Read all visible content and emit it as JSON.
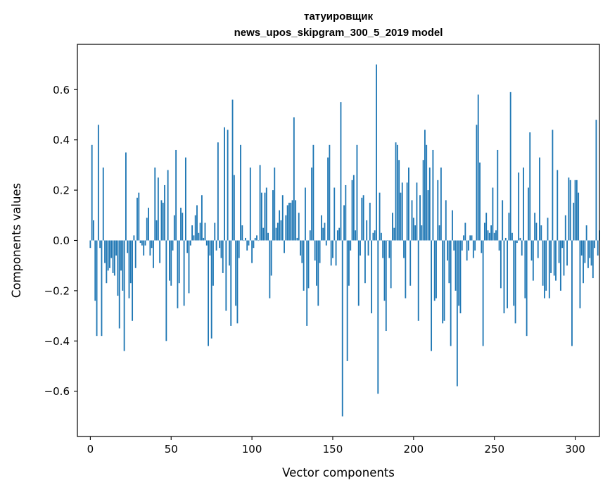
{
  "chart_data": {
    "type": "bar",
    "title": "татуировщик",
    "subtitle": "news_upos_skipgram_300_5_2019 model",
    "xlabel": "Vector components",
    "ylabel": "Components values",
    "xlim": [
      -8,
      315
    ],
    "ylim": [
      -0.78,
      0.78
    ],
    "xticks": [
      0,
      50,
      100,
      150,
      200,
      250,
      300
    ],
    "yticks": [
      -0.6,
      -0.4,
      -0.2,
      0.0,
      0.2,
      0.4,
      0.6
    ],
    "ytick_labels": [
      "−0.6",
      "−0.4",
      "−0.2",
      "0.0",
      "0.2",
      "0.4",
      "0.6"
    ],
    "color": "#1f77b4",
    "values": [
      -0.03,
      0.38,
      0.08,
      -0.24,
      -0.38,
      0.46,
      -0.03,
      -0.38,
      0.29,
      -0.09,
      -0.17,
      -0.12,
      -0.11,
      -0.07,
      -0.13,
      -0.14,
      -0.06,
      -0.22,
      -0.35,
      -0.12,
      -0.2,
      -0.44,
      0.35,
      -0.05,
      -0.23,
      -0.17,
      -0.32,
      0.02,
      -0.11,
      0.17,
      0.19,
      -0.01,
      -0.02,
      -0.06,
      -0.02,
      0.09,
      0.13,
      -0.06,
      -0.03,
      -0.11,
      0.29,
      0.08,
      0.25,
      -0.09,
      0.16,
      0.15,
      0.22,
      -0.4,
      0.28,
      -0.16,
      -0.18,
      -0.04,
      0.1,
      0.36,
      -0.27,
      -0.17,
      0.13,
      0.11,
      -0.26,
      0.33,
      -0.05,
      -0.21,
      -0.02,
      0.06,
      0.02,
      0.1,
      0.14,
      0.03,
      0.07,
      0.18,
      0.01,
      0.07,
      -0.02,
      -0.42,
      -0.06,
      -0.39,
      -0.18,
      0.07,
      -0.04,
      0.39,
      -0.03,
      -0.07,
      -0.13,
      0.45,
      -0.28,
      0.44,
      -0.1,
      -0.34,
      0.56,
      0.26,
      -0.26,
      -0.33,
      -0.07,
      0.38,
      0.06,
      0.0,
      0.01,
      -0.04,
      -0.02,
      0.29,
      -0.09,
      -0.03,
      0.01,
      0.02,
      0.0,
      0.3,
      0.19,
      0.05,
      0.19,
      0.21,
      0.03,
      -0.23,
      -0.14,
      0.2,
      0.29,
      0.05,
      0.07,
      0.12,
      0.08,
      0.18,
      -0.05,
      0.1,
      0.14,
      0.15,
      0.15,
      0.16,
      0.49,
      0.16,
      0.01,
      0.11,
      -0.06,
      -0.09,
      -0.2,
      0.21,
      -0.34,
      -0.19,
      0.04,
      0.29,
      0.38,
      -0.08,
      -0.18,
      -0.26,
      -0.09,
      0.1,
      0.05,
      0.07,
      -0.02,
      0.33,
      0.38,
      -0.1,
      -0.07,
      0.21,
      -0.1,
      0.04,
      0.05,
      0.55,
      -0.7,
      0.14,
      0.22,
      -0.48,
      -0.18,
      -0.04,
      0.24,
      0.26,
      0.04,
      0.38,
      -0.26,
      -0.06,
      0.17,
      0.18,
      -0.17,
      0.08,
      -0.06,
      0.15,
      -0.29,
      0.03,
      0.04,
      0.7,
      -0.61,
      0.19,
      0.03,
      -0.07,
      -0.24,
      -0.36,
      0.0,
      -0.07,
      -0.19,
      0.11,
      0.05,
      0.39,
      0.38,
      0.32,
      0.19,
      0.23,
      -0.07,
      -0.23,
      0.23,
      0.29,
      -0.18,
      0.16,
      0.09,
      0.06,
      0.23,
      -0.32,
      0.18,
      0.06,
      0.32,
      0.44,
      0.38,
      0.2,
      0.29,
      -0.44,
      0.36,
      -0.24,
      -0.23,
      0.24,
      0.06,
      0.29,
      -0.33,
      -0.32,
      0.16,
      -0.08,
      -0.17,
      -0.42,
      0.12,
      -0.04,
      -0.2,
      -0.58,
      -0.26,
      -0.29,
      -0.04,
      0.02,
      0.07,
      -0.08,
      -0.04,
      0.02,
      0.02,
      -0.07,
      -0.04,
      0.46,
      0.58,
      0.31,
      -0.05,
      -0.42,
      0.07,
      0.11,
      0.04,
      0.03,
      0.06,
      0.21,
      0.03,
      0.04,
      0.36,
      -0.04,
      -0.19,
      0.16,
      -0.29,
      0.01,
      -0.27,
      0.11,
      0.59,
      0.03,
      -0.26,
      -0.33,
      -0.01,
      0.27,
      0.01,
      -0.06,
      0.29,
      -0.23,
      -0.38,
      0.21,
      0.43,
      -0.08,
      -0.16,
      0.11,
      0.07,
      -0.07,
      0.33,
      0.06,
      -0.18,
      -0.23,
      -0.2,
      0.09,
      -0.23,
      -0.13,
      0.44,
      -0.14,
      -0.16,
      0.28,
      -0.09,
      -0.2,
      -0.03,
      -0.14,
      0.1,
      -0.1,
      0.25,
      0.24,
      -0.42,
      0.15,
      0.24,
      0.24,
      0.19,
      -0.27,
      -0.06,
      -0.17,
      -0.09,
      0.06,
      -0.11,
      -0.07,
      -0.1,
      -0.15,
      -0.03,
      0.48,
      -0.06,
      0.04
    ]
  }
}
